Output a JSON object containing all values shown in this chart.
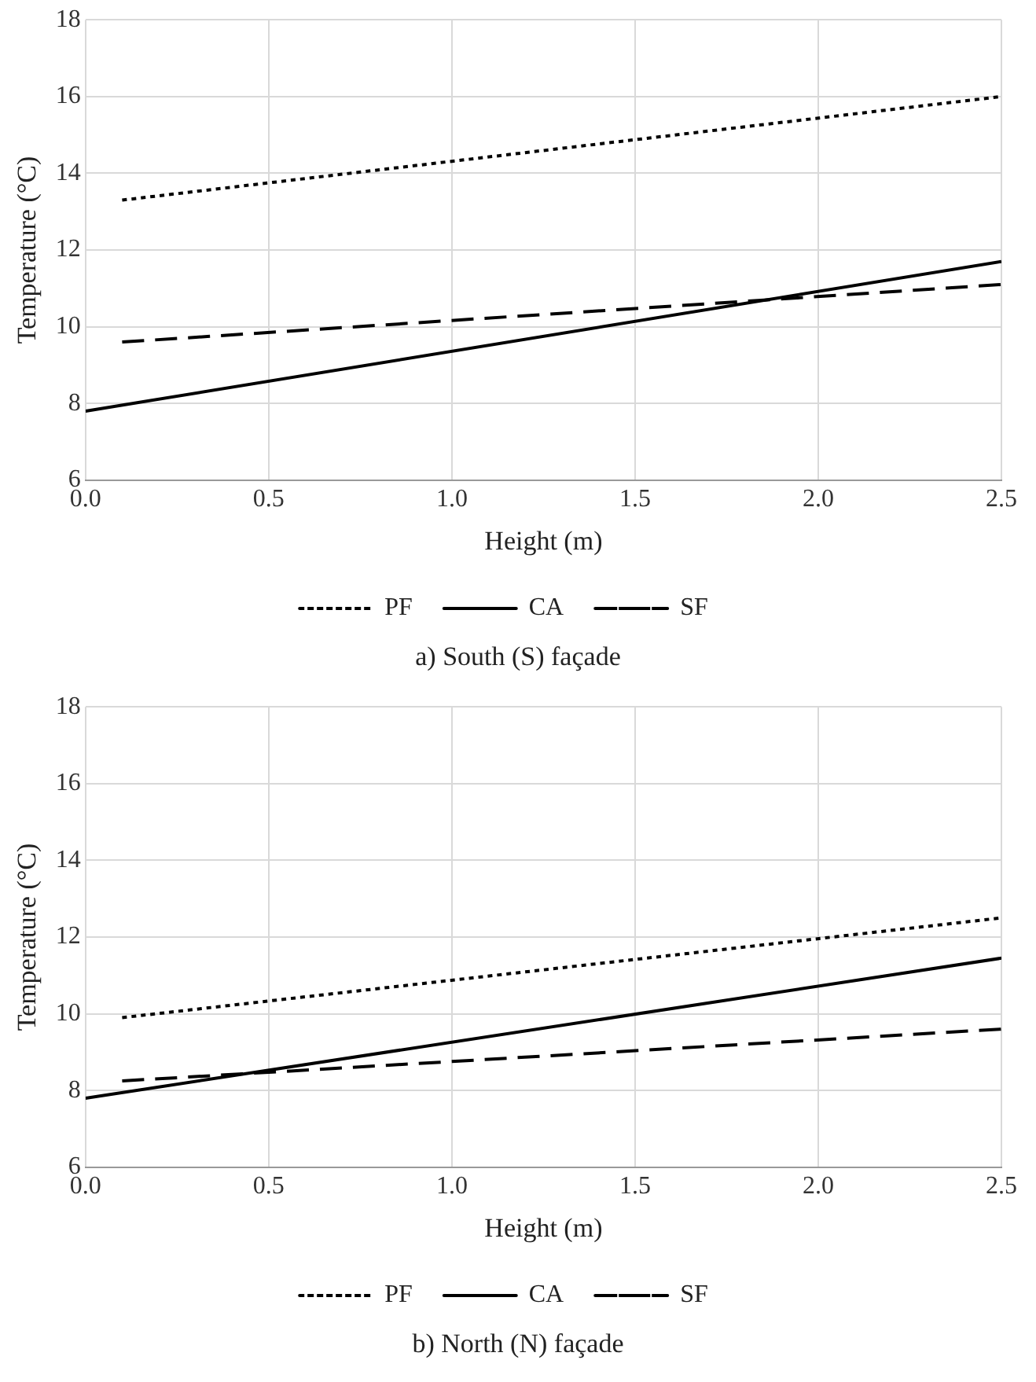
{
  "chart_data": [
    {
      "type": "line",
      "xlabel": "Height (m)",
      "ylabel": "Temperature (°C)",
      "xlim": [
        0,
        2.5
      ],
      "ylim": [
        6,
        18
      ],
      "xticks": [
        {
          "value": 0,
          "label": "0.0"
        },
        {
          "value": 0.5,
          "label": "0.5"
        },
        {
          "value": 1,
          "label": "1.0"
        },
        {
          "value": 1.5,
          "label": "1.5"
        },
        {
          "value": 2,
          "label": "2.0"
        },
        {
          "value": 2.5,
          "label": "2.5"
        }
      ],
      "yticks": [
        6,
        8,
        10,
        12,
        14,
        16,
        18
      ],
      "grid": true,
      "legend": "bottom",
      "marker": "none",
      "series": [
        {
          "name": "PF",
          "color": "#000000",
          "line_style": "dotted",
          "x": [
            0.1,
            2.5
          ],
          "values": [
            13.3,
            16.0
          ]
        },
        {
          "name": "CA",
          "color": "#000000",
          "line_style": "solid",
          "x": [
            0,
            2.5
          ],
          "values": [
            7.8,
            11.7
          ]
        },
        {
          "name": "SF",
          "color": "#000000",
          "line_style": "dashed",
          "x": [
            0.1,
            2.5
          ],
          "values": [
            9.6,
            11.1
          ]
        }
      ],
      "annotations": [
        "a) South (S) façade"
      ]
    },
    {
      "type": "line",
      "xlabel": "Height (m)",
      "ylabel": "Temperature (°C)",
      "xlim": [
        0,
        2.5
      ],
      "ylim": [
        6,
        18
      ],
      "xticks": [
        {
          "value": 0,
          "label": "0.0"
        },
        {
          "value": 0.5,
          "label": "0.5"
        },
        {
          "value": 1,
          "label": "1.0"
        },
        {
          "value": 1.5,
          "label": "1.5"
        },
        {
          "value": 2,
          "label": "2.0"
        },
        {
          "value": 2.5,
          "label": "2.5"
        }
      ],
      "yticks": [
        6,
        8,
        10,
        12,
        14,
        16,
        18
      ],
      "grid": true,
      "legend": "bottom",
      "marker": "none",
      "series": [
        {
          "name": "PF",
          "color": "#000000",
          "line_style": "dotted",
          "x": [
            0.1,
            2.5
          ],
          "values": [
            9.9,
            12.5
          ]
        },
        {
          "name": "CA",
          "color": "#000000",
          "line_style": "solid",
          "x": [
            0,
            2.5
          ],
          "values": [
            7.8,
            11.45
          ]
        },
        {
          "name": "SF",
          "color": "#000000",
          "line_style": "dashed",
          "x": [
            0.1,
            2.5
          ],
          "values": [
            8.25,
            9.6
          ]
        }
      ],
      "annotations": [
        "b) North (N) façade"
      ]
    }
  ]
}
